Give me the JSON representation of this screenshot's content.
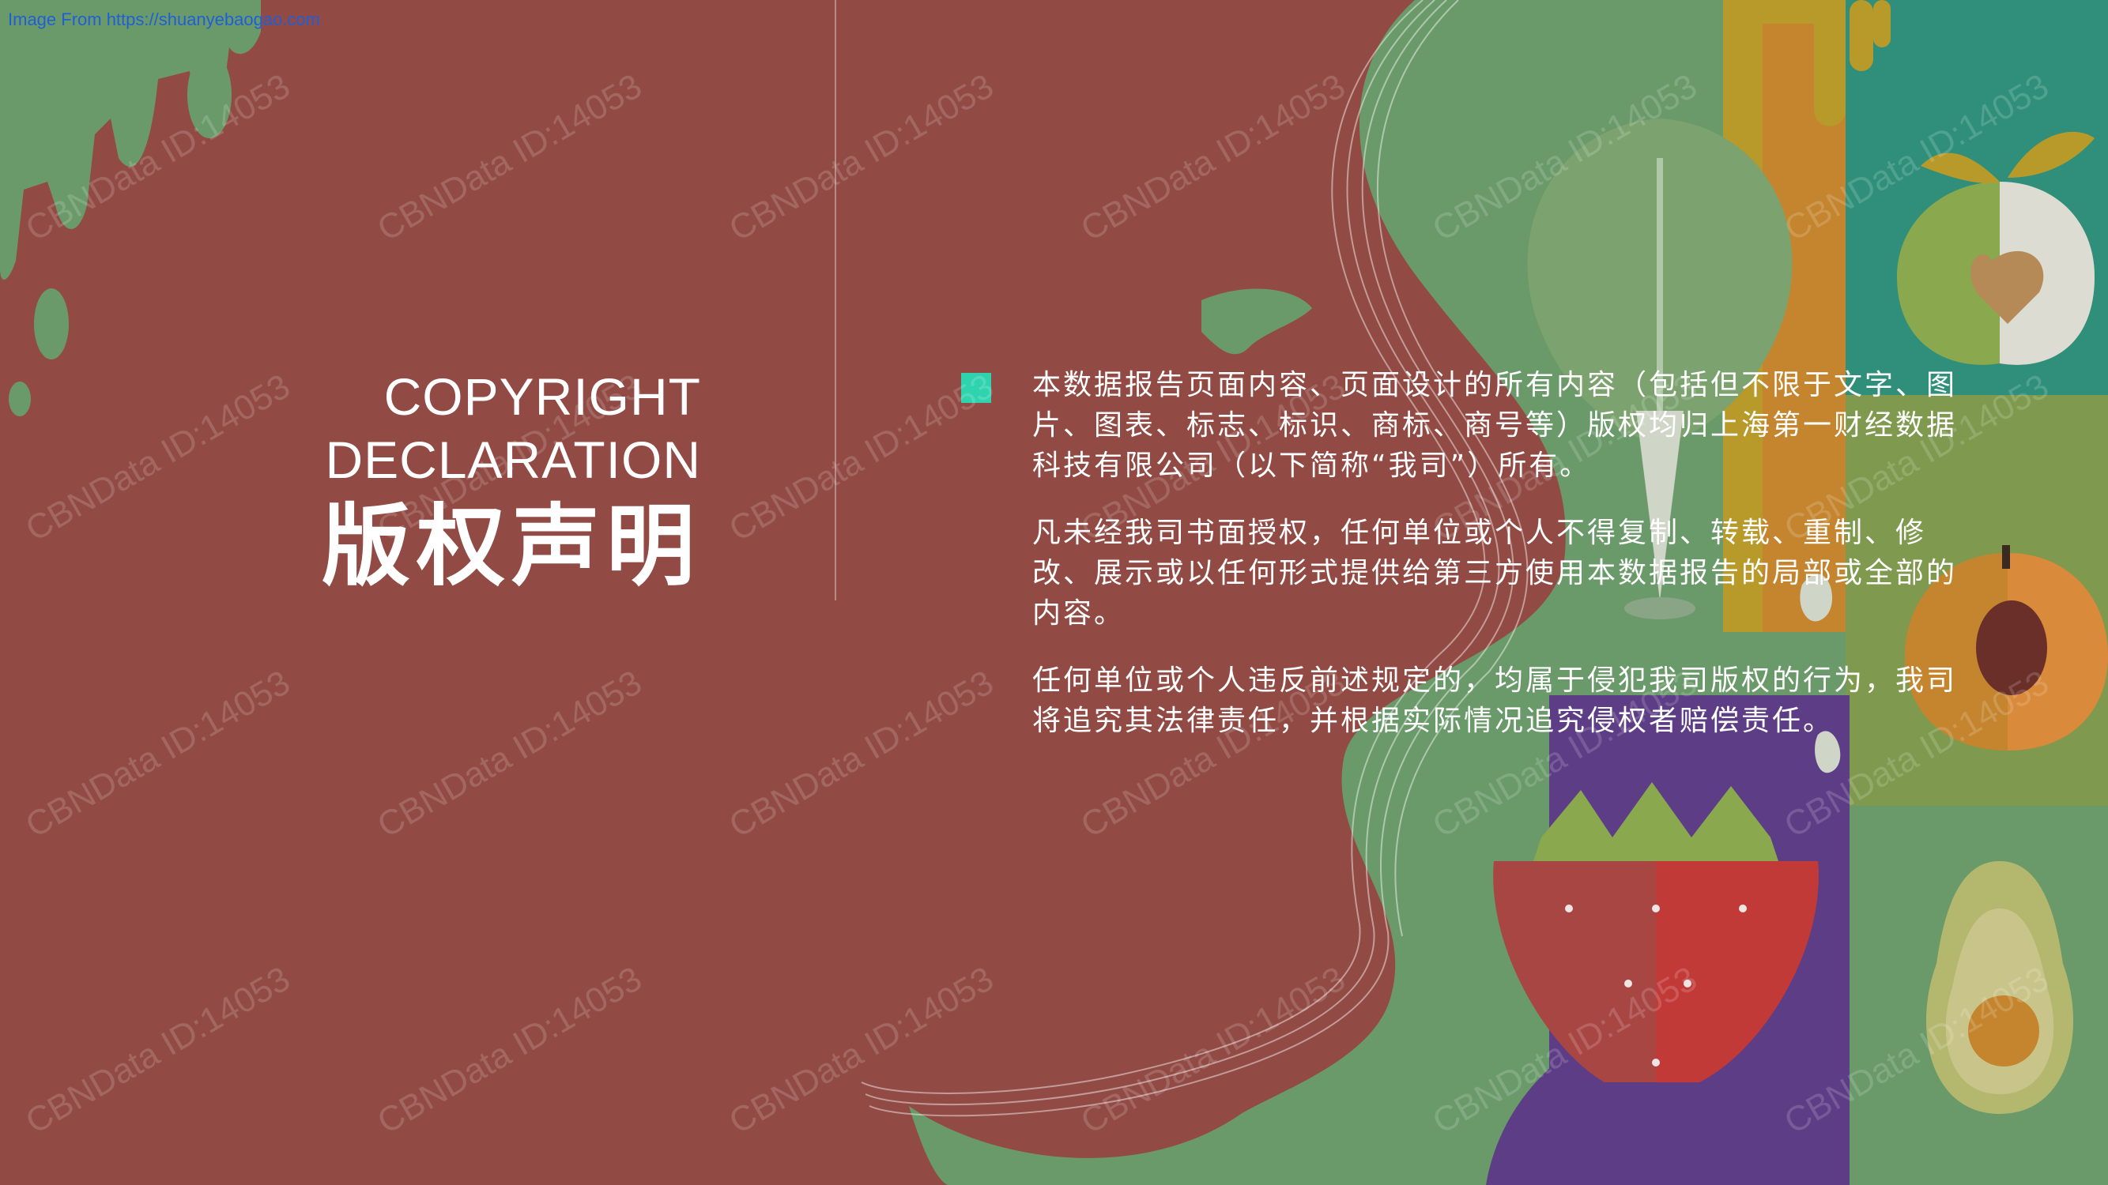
{
  "header": {
    "source_label": "Image From https://shuanyebaogao.com"
  },
  "title": {
    "en_line1": "COPYRIGHT",
    "en_line2": "DECLARATION",
    "zh": "版权声明"
  },
  "body": {
    "paragraphs": [
      "本数据报告页面内容、页面设计的所有内容（包括但不限于文字、图片、图表、标志、标识、商标、商号等）版权均归上海第一财经数据科技有限公司（以下简称“我司”）所有。",
      "凡未经我司书面授权，任何单位或个人不得复制、转载、重制、修改、展示或以任何形式提供给第三方使用本数据报告的局部或全部的内容。",
      "任何单位或个人违反前述规定的，均属于侵犯我司版权的行为，我司将追究其法律责任，并根据实际情况追究侵权者赔偿责任。"
    ]
  },
  "watermark": {
    "text": "CBNData ID:14053"
  },
  "colors": {
    "background": "#924a44",
    "accent_bullet": "#2fd3ae",
    "green": "#6b9a6a",
    "purple": "#5d3d86",
    "teal": "#2f8f7a",
    "orange": "#c4852e",
    "mustard": "#b89a2a",
    "link": "#1f5fd6"
  }
}
